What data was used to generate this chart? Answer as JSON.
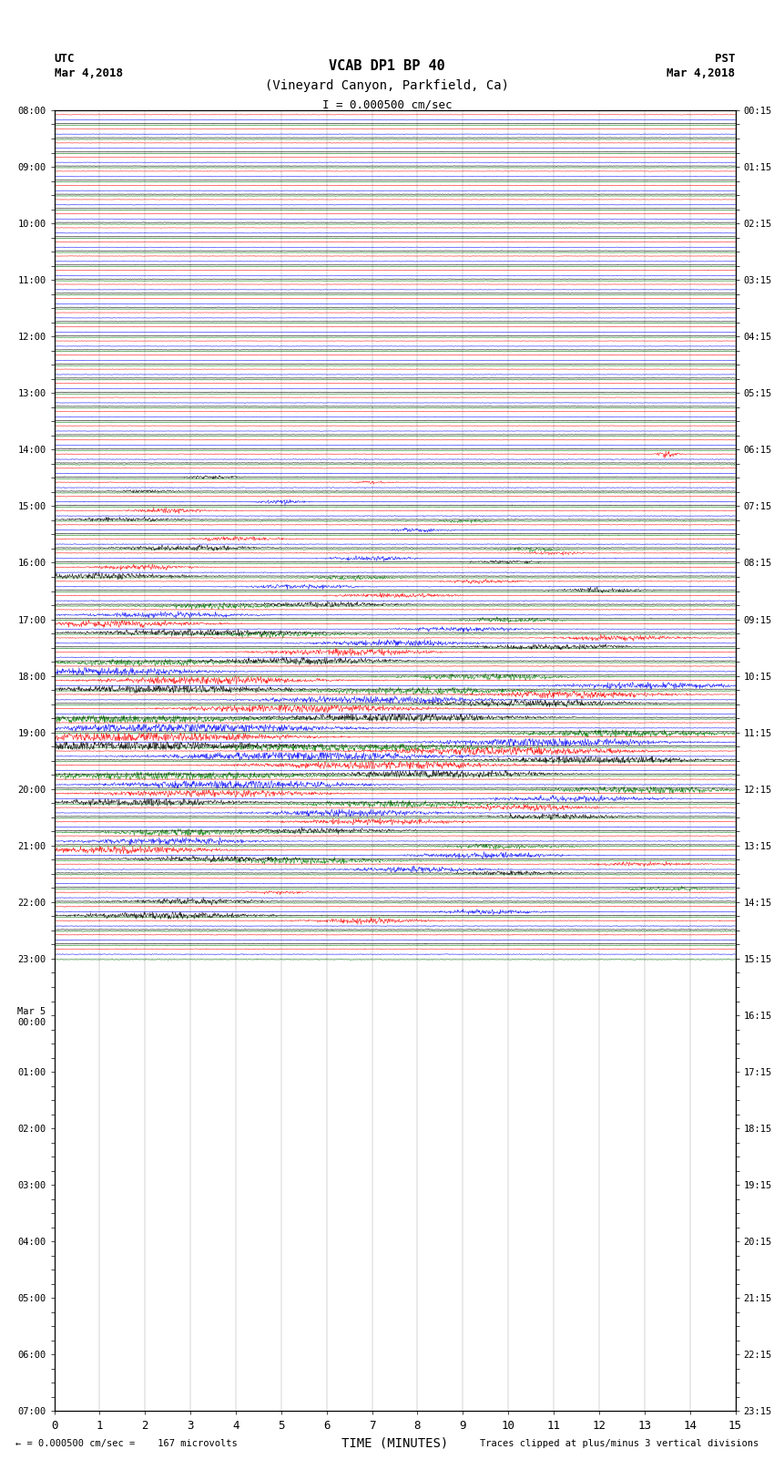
{
  "title_line1": "VCAB DP1 BP 40",
  "title_line2": "(Vineyard Canyon, Parkfield, Ca)",
  "scale_label": "I = 0.000500 cm/sec",
  "utc_label": "UTC",
  "utc_date": "Mar 4,2018",
  "pst_label": "PST",
  "pst_date": "Mar 4,2018",
  "xlabel": "TIME (MINUTES)",
  "bottom_left": "= 0.000500 cm/sec =    167 microvolts",
  "bottom_right": "Traces clipped at plus/minus 3 vertical divisions",
  "utc_times": [
    "08:00",
    "",
    "",
    "",
    "09:00",
    "",
    "",
    "",
    "10:00",
    "",
    "",
    "",
    "11:00",
    "",
    "",
    "",
    "12:00",
    "",
    "",
    "",
    "13:00",
    "",
    "",
    "",
    "14:00",
    "",
    "",
    "",
    "15:00",
    "",
    "",
    "",
    "16:00",
    "",
    "",
    "",
    "17:00",
    "",
    "",
    "",
    "18:00",
    "",
    "",
    "",
    "19:00",
    "",
    "",
    "",
    "20:00",
    "",
    "",
    "",
    "21:00",
    "",
    "",
    "",
    "22:00",
    "",
    "",
    "",
    "23:00",
    "",
    "",
    "",
    "Mar 5\n00:00",
    "",
    "",
    "",
    "01:00",
    "",
    "",
    "",
    "02:00",
    "",
    "",
    "",
    "03:00",
    "",
    "",
    "",
    "04:00",
    "",
    "",
    "",
    "05:00",
    "",
    "",
    "",
    "06:00",
    "",
    "",
    "",
    "07:00"
  ],
  "pst_times": [
    "00:15",
    "",
    "",
    "",
    "01:15",
    "",
    "",
    "",
    "02:15",
    "",
    "",
    "",
    "03:15",
    "",
    "",
    "",
    "04:15",
    "",
    "",
    "",
    "05:15",
    "",
    "",
    "",
    "06:15",
    "",
    "",
    "",
    "07:15",
    "",
    "",
    "",
    "08:15",
    "",
    "",
    "",
    "09:15",
    "",
    "",
    "",
    "10:15",
    "",
    "",
    "",
    "11:15",
    "",
    "",
    "",
    "12:15",
    "",
    "",
    "",
    "13:15",
    "",
    "",
    "",
    "14:15",
    "",
    "",
    "",
    "15:15",
    "",
    "",
    "",
    "16:15",
    "",
    "",
    "",
    "17:15",
    "",
    "",
    "",
    "18:15",
    "",
    "",
    "",
    "19:15",
    "",
    "",
    "",
    "20:15",
    "",
    "",
    "",
    "21:15",
    "",
    "",
    "",
    "22:15",
    "",
    "",
    "",
    "23:15"
  ],
  "n_rows": 60,
  "n_channels": 4,
  "colors": [
    "black",
    "red",
    "blue",
    "green"
  ],
  "time_minutes": 15,
  "noise_base": 0.08,
  "background": "white",
  "plot_bg": "white",
  "grid_color": "black",
  "amplitude_scale": 0.35
}
